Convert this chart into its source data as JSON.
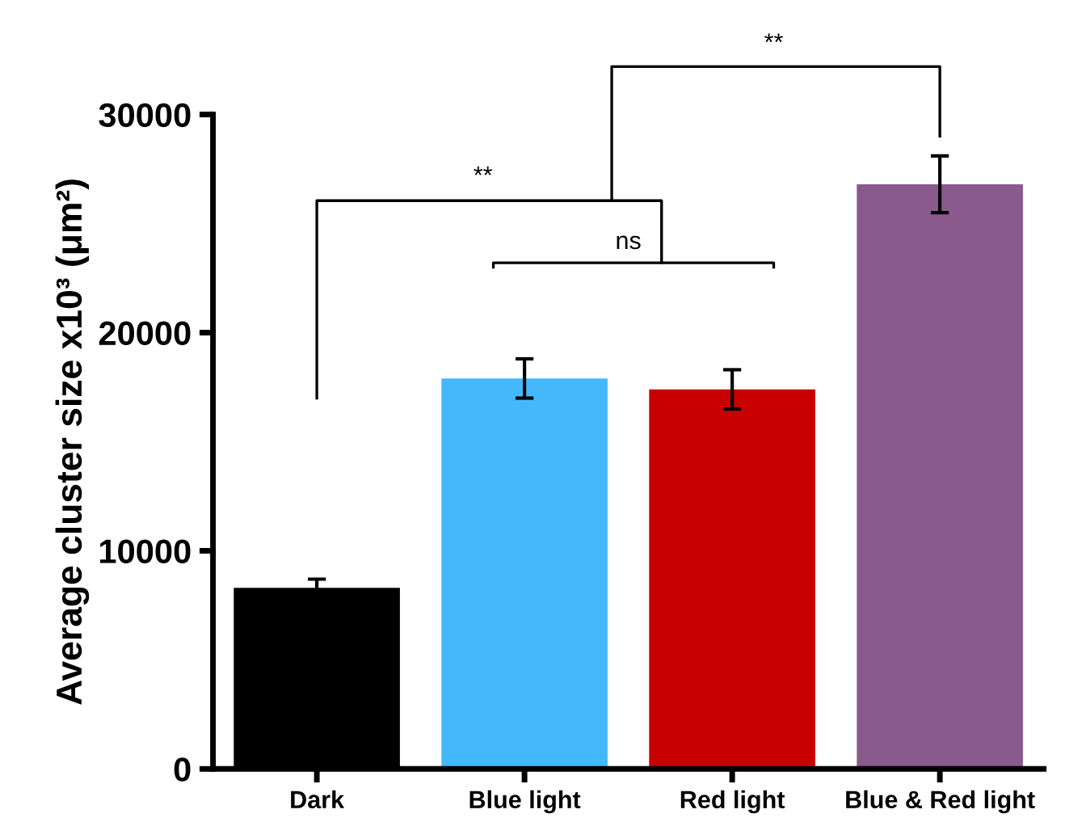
{
  "chart_data": {
    "type": "bar",
    "ylabel": "Average cluster size x10³ (μm²)",
    "categories": [
      "Dark",
      "Blue light",
      "Red light",
      "Blue & Red light"
    ],
    "values": [
      8300,
      17900,
      17400,
      26800
    ],
    "errors": [
      400,
      900,
      900,
      1300
    ],
    "colors": [
      "#000000",
      "#45b8fc",
      "#c80000",
      "#8a5a8c"
    ],
    "ylim": [
      0,
      30000
    ],
    "yticks": [
      0,
      10000,
      20000,
      30000
    ],
    "annotations": [
      "**",
      "ns",
      "**"
    ],
    "grid": false,
    "legend": false
  }
}
